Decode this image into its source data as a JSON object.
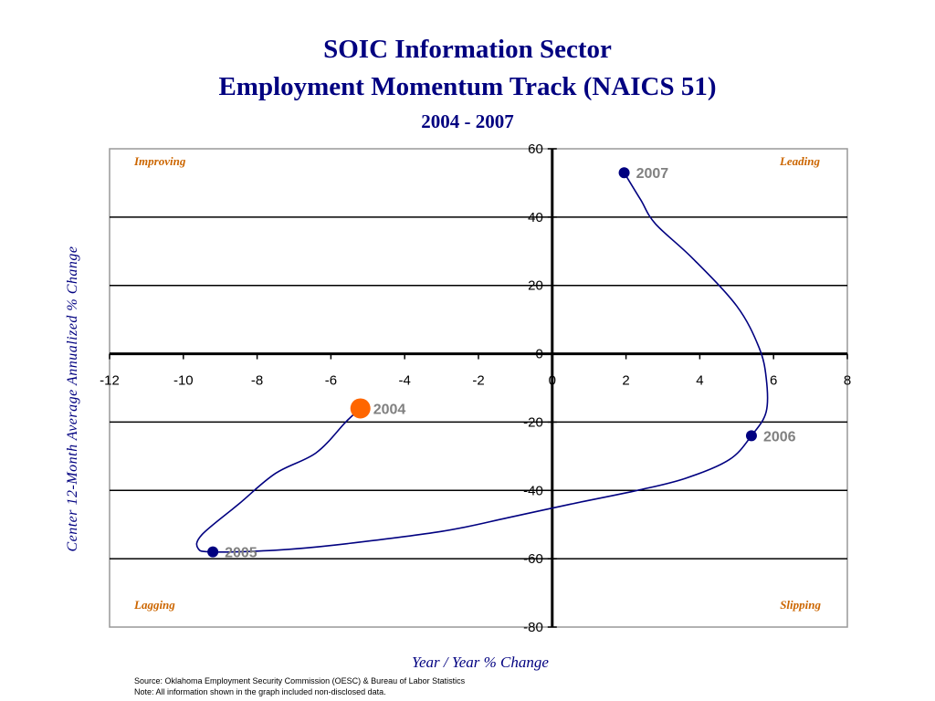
{
  "chart_data": {
    "type": "line",
    "title": "SOIC Information Sector",
    "title_line2": "Employment Momentum Track (NAICS 51)",
    "subtitle": "2004 - 2007",
    "xlabel": "Year / Year % Change",
    "ylabel": "Center 12-Month Average Annualized % Change",
    "xlim": [
      -12,
      8
    ],
    "ylim": [
      -80,
      60
    ],
    "xticks": [
      -12,
      -10,
      -8,
      -6,
      -4,
      -2,
      0,
      2,
      4,
      6,
      8
    ],
    "yticks": [
      60,
      40,
      20,
      0,
      -20,
      -40,
      -60,
      -80
    ],
    "grid": "horizontal",
    "quadrants": {
      "top_left": "Improving",
      "top_right": "Leading",
      "bottom_left": "Lagging",
      "bottom_right": "Slipping"
    },
    "points": [
      {
        "label": "2004",
        "x": -5.2,
        "y": -16
      },
      {
        "label": "2005",
        "x": -9.2,
        "y": -58
      },
      {
        "label": "2006",
        "x": 5.4,
        "y": -24
      },
      {
        "label": "2007",
        "x": 1.95,
        "y": 53
      }
    ],
    "path": [
      {
        "x": -5.2,
        "y": -16
      },
      {
        "x": -5.6,
        "y": -20
      },
      {
        "x": -6.4,
        "y": -29
      },
      {
        "x": -7.5,
        "y": -35
      },
      {
        "x": -8.5,
        "y": -44
      },
      {
        "x": -9.5,
        "y": -53
      },
      {
        "x": -9.6,
        "y": -57
      },
      {
        "x": -9.2,
        "y": -58
      },
      {
        "x": -7.5,
        "y": -57.5
      },
      {
        "x": -5.9,
        "y": -56
      },
      {
        "x": -3.0,
        "y": -52
      },
      {
        "x": -1.2,
        "y": -48
      },
      {
        "x": 0.5,
        "y": -44
      },
      {
        "x": 2.3,
        "y": -40
      },
      {
        "x": 3.6,
        "y": -36.5
      },
      {
        "x": 4.8,
        "y": -31
      },
      {
        "x": 5.4,
        "y": -24
      },
      {
        "x": 5.8,
        "y": -17
      },
      {
        "x": 5.8,
        "y": -7
      },
      {
        "x": 5.6,
        "y": 2
      },
      {
        "x": 5.0,
        "y": 14
      },
      {
        "x": 3.8,
        "y": 28
      },
      {
        "x": 2.8,
        "y": 38
      },
      {
        "x": 2.4,
        "y": 45
      },
      {
        "x": 1.95,
        "y": 53
      }
    ],
    "highlight": {
      "label": "2004",
      "color": "#ff6600"
    },
    "colors": {
      "line": "#000080",
      "marker": "#000080",
      "title": "#000080",
      "quadrant": "#cc6600",
      "point_label": "#808080"
    }
  },
  "footer": {
    "source": "Source:  Oklahoma Employment Security Commission (OESC) & Bureau of Labor Statistics",
    "note": "Note: All information shown in the graph included non-disclosed data."
  }
}
